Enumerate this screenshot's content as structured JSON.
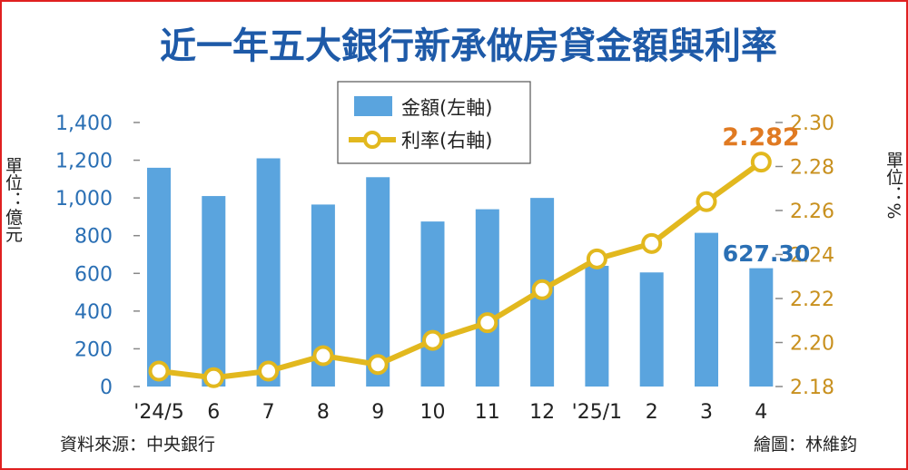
{
  "chart_data": {
    "type": "bar+line",
    "title": "近一年五大銀行新承做房貸金額與利率",
    "categories": [
      "'24/5",
      "6",
      "7",
      "8",
      "9",
      "10",
      "11",
      "12",
      "'25/1",
      "2",
      "3",
      "4"
    ],
    "series": [
      {
        "name": "金額(左軸)",
        "type": "bar",
        "axis": "left",
        "color": "#5aa4de",
        "values": [
          1160,
          1010,
          1210,
          965,
          1110,
          875,
          940,
          1000,
          640,
          605,
          815,
          627.3
        ]
      },
      {
        "name": "利率(右軸)",
        "type": "line",
        "axis": "right",
        "color": "#e2b81e",
        "values": [
          2.187,
          2.184,
          2.187,
          2.194,
          2.19,
          2.201,
          2.209,
          2.224,
          2.238,
          2.245,
          2.264,
          2.282
        ]
      }
    ],
    "left_axis": {
      "unit_label": "單位：億元",
      "ylim": [
        0,
        1400
      ],
      "ticks": [
        0,
        200,
        400,
        600,
        800,
        1000,
        1200,
        1400
      ],
      "tick_labels": [
        "0",
        "200",
        "400",
        "600",
        "800",
        "1,000",
        "1,200",
        "1,400"
      ]
    },
    "right_axis": {
      "unit_label": "單位：%",
      "ylim": [
        2.18,
        2.3
      ],
      "ticks": [
        2.18,
        2.2,
        2.22,
        2.24,
        2.26,
        2.28,
        2.3
      ],
      "tick_labels": [
        "2.18",
        "2.20",
        "2.22",
        "2.24",
        "2.26",
        "2.28",
        "2.30"
      ]
    },
    "annotations": {
      "last_rate": "2.282",
      "last_amount": "627.30"
    },
    "legend": {
      "placement": "top-center",
      "items": [
        "金額(左軸)",
        "利率(右軸)"
      ]
    },
    "grid": false,
    "source": "資料來源：中央銀行",
    "credit": "繪圖：林維鈞"
  }
}
